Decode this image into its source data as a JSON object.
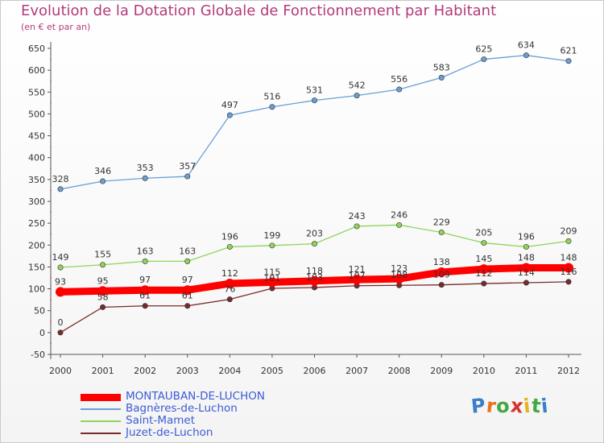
{
  "title": "Evolution de la Dotation Globale de Fonctionnement par Habitant",
  "subtitle": "(en € et par an)",
  "logo": {
    "text": "Proxiti",
    "colors": [
      "#3a7dc9",
      "#e8731b",
      "#43a843",
      "#d6322c",
      "#e8b41b",
      "#43a843",
      "#3a7dc9"
    ]
  },
  "chart_data": {
    "type": "line",
    "title": "Evolution de la Dotation Globale de Fonctionnement par Habitant",
    "subtitle": "(en € et par an)",
    "x": [
      "2000",
      "2001",
      "2002",
      "2003",
      "2004",
      "2005",
      "2006",
      "2007",
      "2008",
      "2009",
      "2010",
      "2011",
      "2012"
    ],
    "ylim": [
      -50,
      650
    ],
    "yticks": [
      -50,
      0,
      50,
      100,
      150,
      200,
      250,
      300,
      350,
      400,
      450,
      500,
      550,
      600,
      650
    ],
    "grid": false,
    "legend_position": "bottom-left",
    "series": [
      {
        "name": "MONTAUBAN-DE-LUCHON",
        "color": "#ff0000",
        "values": [
          93,
          95,
          97,
          97,
          112,
          115,
          118,
          121,
          123,
          138,
          145,
          148,
          148
        ],
        "labels": [
          "93",
          "95",
          "97",
          "97",
          "112",
          "115",
          "118",
          "121",
          "123",
          "138",
          "145",
          "148",
          "148"
        ]
      },
      {
        "name": "Bagnères-de-Luchon",
        "color": "#6a9fd4",
        "values": [
          328,
          346,
          353,
          357,
          497,
          516,
          531,
          542,
          556,
          583,
          625,
          634,
          621
        ],
        "labels": [
          "328",
          "346",
          "353",
          "357",
          "497",
          "516",
          "531",
          "542",
          "556",
          "583",
          "625",
          "634",
          "621"
        ]
      },
      {
        "name": "Saint-Mamet",
        "color": "#8fd45a",
        "values": [
          149,
          155,
          163,
          163,
          196,
          199,
          203,
          243,
          246,
          229,
          205,
          196,
          209
        ],
        "labels": [
          "149",
          "155",
          "163",
          "163",
          "196",
          "199",
          "203",
          "243",
          "246",
          "229",
          "205",
          "196",
          "209"
        ]
      },
      {
        "name": "Juzet-de-Luchon",
        "color": "#7a2a2a",
        "values": [
          0,
          58,
          61,
          61,
          76,
          101,
          103,
          107,
          108,
          109,
          112,
          114,
          116
        ],
        "labels": [
          "0",
          "58",
          "61",
          "61",
          "76",
          "101",
          "103",
          "107",
          "108",
          "109",
          "112",
          "114",
          "116"
        ]
      }
    ]
  }
}
